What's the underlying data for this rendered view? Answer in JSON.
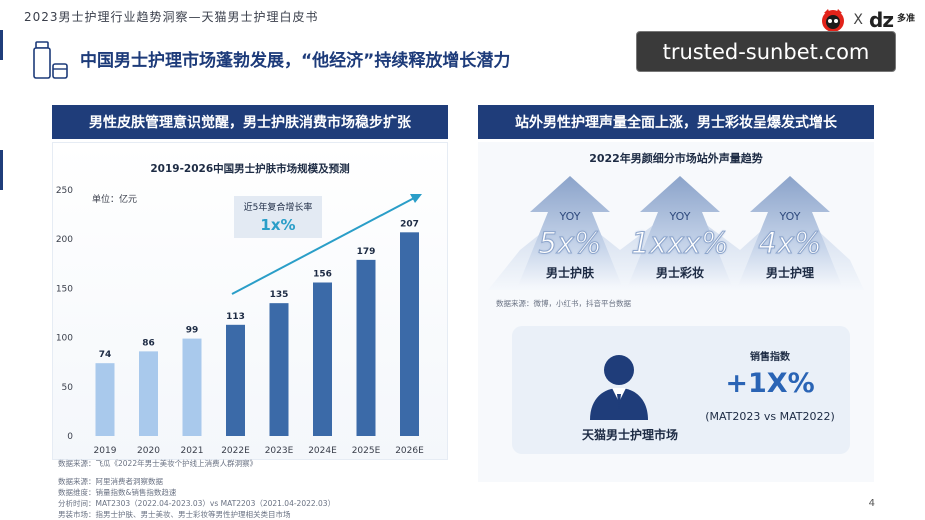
{
  "report_title": "2023男士护理行业趋势洞察—天猫男士护理白皮书",
  "headline": "中国男士护理市场蓬勃发展，“他经济”持续释放增长潜力",
  "watermark": "trusted-sunbet.com",
  "logos": {
    "x": "X",
    "dz": "dz",
    "dz_cn": "多准"
  },
  "left_banner": "男性皮肤管理意识觉醒，男士护肤消费市场稳步扩张",
  "right_banner": "站外男性护理声量全面上涨，男士彩妆呈爆发式增长",
  "chart_data": {
    "type": "bar",
    "title": "2019-2026中国男士护肤市场规模及预测",
    "unit_label": "单位：亿元",
    "categories": [
      "2019",
      "2020",
      "2021",
      "2022E",
      "2023E",
      "2024E",
      "2025E",
      "2026E"
    ],
    "values": [
      74,
      86,
      99,
      113,
      135,
      156,
      179,
      207
    ],
    "data_labels": [
      "74",
      "86",
      "99",
      "113",
      "135",
      "156",
      "179",
      "207"
    ],
    "yticks": [
      "0",
      "50",
      "100",
      "150",
      "200",
      "250"
    ],
    "ylim": [
      0,
      250
    ],
    "grid": false,
    "colors": {
      "actual": "#a9c9ec",
      "forecast": "#3b6aa8",
      "trend": "#2a9ec8"
    },
    "annotation": {
      "label": "近5年复合增长率",
      "value": "1x%"
    },
    "source": "数据来源：飞瓜《2022年男士美妆个护线上消费人群洞察》"
  },
  "left_footnotes": [
    "数据来源：阿里消费者洞察数据",
    "数据维度：销量指数&销售指数趋速",
    "分析时间：MAT2303（2022.04-2023.03）vs MAT2203（2021.04-2022.03）",
    "男装市场：指男士护肤、男士美妆、男士彩妆等男性护理相关类目市场"
  ],
  "right_panel": {
    "title": "2022年男颜细分市场站外声量趋势",
    "arrows": [
      {
        "yoy": "YOY",
        "value": "5x%",
        "category": "男士护肤"
      },
      {
        "yoy": "YOY",
        "value": "1xxx%",
        "category": "男士彩妆"
      },
      {
        "yoy": "YOY",
        "value": "4x%",
        "category": "男士护理"
      }
    ],
    "source": "数据来源：微博，小红书，抖音平台数据",
    "market": {
      "name": "天猫男士护理市场",
      "metric": "销售指数",
      "growth": "+1X%",
      "period": "(MAT2023 vs MAT2022)"
    }
  },
  "page_number": "4"
}
